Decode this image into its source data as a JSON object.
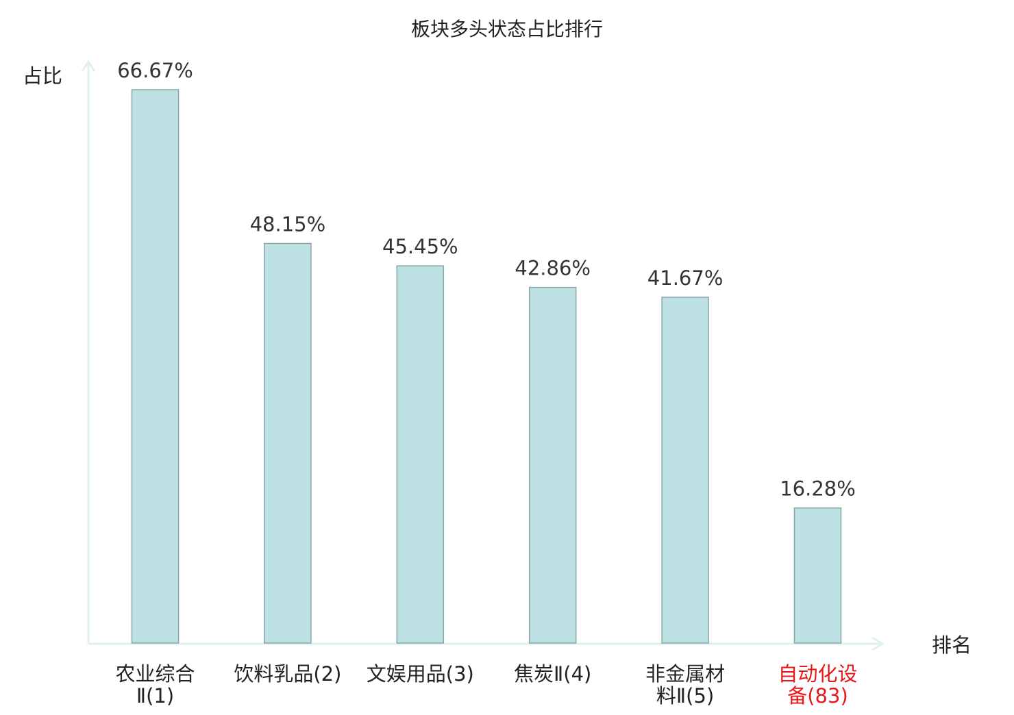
{
  "chart_data": {
    "type": "bar",
    "title": "板块多头状态占比排行",
    "ylabel": "占比",
    "xlabel": "排名",
    "ylim": [
      0,
      66.67
    ],
    "grid": false,
    "legend": "none",
    "categories": [
      {
        "lines": [
          "农业综合",
          "Ⅱ(1)"
        ],
        "highlight": false
      },
      {
        "lines": [
          "饮料乳品(2)"
        ],
        "highlight": false
      },
      {
        "lines": [
          "文娱用品(3)"
        ],
        "highlight": false
      },
      {
        "lines": [
          "焦炭Ⅱ(4)"
        ],
        "highlight": false
      },
      {
        "lines": [
          "非金属材",
          "料Ⅱ(5)"
        ],
        "highlight": false
      },
      {
        "lines": [
          "自动化设",
          "备(83)"
        ],
        "highlight": true
      }
    ],
    "values": [
      66.67,
      48.15,
      45.45,
      42.86,
      41.67,
      16.28
    ],
    "value_labels": [
      "66.67%",
      "48.15%",
      "45.45%",
      "42.86%",
      "41.67%",
      "16.28%"
    ],
    "colors": {
      "bar_fill": "#bde0e3",
      "bar_stroke": "#86a7aa",
      "axis": "#dff1ee",
      "text": "#333333",
      "label": "#222222",
      "highlight": "#e8191c"
    }
  }
}
